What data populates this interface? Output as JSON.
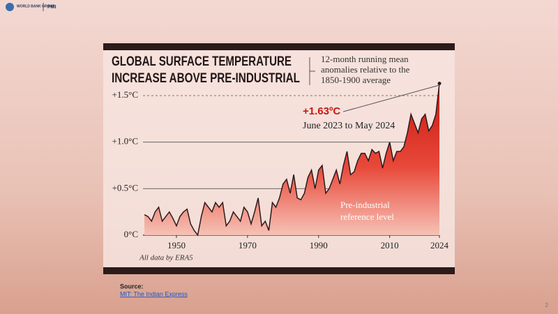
{
  "header": {
    "logo_1": "WORLD BANK GROUP",
    "logo_2": "PMI"
  },
  "chart_data": {
    "type": "area",
    "title": [
      "GLOBAL SURFACE TEMPERATURE",
      "INCREASE ABOVE PRE-INDUSTRIAL"
    ],
    "subtitle": [
      "12-month running mean",
      "anomalies relative to the",
      "1850-1900 average"
    ],
    "annotation_value": "+1.63ºC",
    "annotation_period": "June 2023 to May 2024",
    "reference_label": [
      "Pre-industrial",
      "reference level"
    ],
    "note": "All data by ERA5",
    "x": [
      1941,
      1942,
      1943,
      1944,
      1945,
      1946,
      1947,
      1948,
      1949,
      1950,
      1951,
      1952,
      1953,
      1954,
      1955,
      1956,
      1957,
      1958,
      1959,
      1960,
      1961,
      1962,
      1963,
      1964,
      1965,
      1966,
      1967,
      1968,
      1969,
      1970,
      1971,
      1972,
      1973,
      1974,
      1975,
      1976,
      1977,
      1978,
      1979,
      1980,
      1981,
      1982,
      1983,
      1984,
      1985,
      1986,
      1987,
      1988,
      1989,
      1990,
      1991,
      1992,
      1993,
      1994,
      1995,
      1996,
      1997,
      1998,
      1999,
      2000,
      2001,
      2002,
      2003,
      2004,
      2005,
      2006,
      2007,
      2008,
      2009,
      2010,
      2011,
      2012,
      2013,
      2014,
      2015,
      2016,
      2017,
      2018,
      2019,
      2020,
      2021,
      2022,
      2023,
      2024
    ],
    "values": [
      0.22,
      0.2,
      0.15,
      0.25,
      0.3,
      0.15,
      0.2,
      0.25,
      0.18,
      0.1,
      0.2,
      0.25,
      0.28,
      0.12,
      0.05,
      0.0,
      0.2,
      0.35,
      0.3,
      0.25,
      0.35,
      0.3,
      0.35,
      0.1,
      0.15,
      0.25,
      0.2,
      0.15,
      0.3,
      0.25,
      0.12,
      0.25,
      0.4,
      0.1,
      0.15,
      0.05,
      0.35,
      0.3,
      0.4,
      0.55,
      0.6,
      0.45,
      0.65,
      0.4,
      0.38,
      0.45,
      0.62,
      0.7,
      0.5,
      0.7,
      0.75,
      0.45,
      0.5,
      0.6,
      0.7,
      0.55,
      0.75,
      0.9,
      0.65,
      0.68,
      0.8,
      0.88,
      0.88,
      0.8,
      0.92,
      0.88,
      0.9,
      0.72,
      0.88,
      1.0,
      0.8,
      0.9,
      0.9,
      0.95,
      1.1,
      1.3,
      1.2,
      1.1,
      1.25,
      1.3,
      1.12,
      1.18,
      1.3,
      1.63
    ],
    "color": "#e02a1c",
    "xlim": [
      1940,
      2024
    ],
    "xticks": [
      1950,
      1970,
      1990,
      2010,
      2024
    ],
    "ylim": [
      0,
      1.5
    ],
    "yticks": [
      {
        "value": 0,
        "label": "0°C"
      },
      {
        "value": 0.5,
        "label": "+0.5°C"
      },
      {
        "value": 1.0,
        "label": "+1.0°C"
      },
      {
        "value": 1.5,
        "label": "+1.5°C"
      }
    ],
    "grid": true
  },
  "footer": {
    "source_label": "Source:",
    "source_link": "MIT: The Indian Express",
    "page_number": "2"
  }
}
